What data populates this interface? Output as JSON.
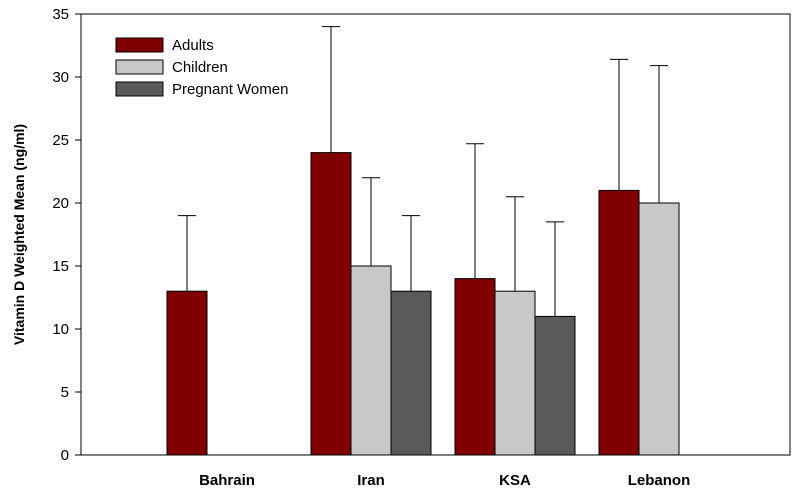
{
  "chart_data": {
    "type": "bar",
    "title": "",
    "xlabel": "",
    "ylabel": "Vitamin D Weighted Mean (ng/ml)",
    "ylim": [
      0,
      35
    ],
    "yticks": [
      0,
      5,
      10,
      15,
      20,
      25,
      30,
      35
    ],
    "grid": false,
    "legend_position": "top-left",
    "categories": [
      "Bahrain",
      "Iran",
      "KSA",
      "Lebanon"
    ],
    "series": [
      {
        "name": "Adults",
        "color": "#800000",
        "values": [
          13,
          24,
          14,
          21
        ],
        "errors": [
          6,
          10,
          10.7,
          10.4
        ]
      },
      {
        "name": "Children",
        "color": "#c8c8c8",
        "values": [
          null,
          15,
          13,
          20
        ],
        "errors": [
          null,
          7,
          7.5,
          10.9
        ]
      },
      {
        "name": "Pregnant Women",
        "color": "#5a5a5a",
        "values": [
          null,
          13,
          11,
          null
        ],
        "errors": [
          null,
          6,
          7.5,
          null
        ]
      }
    ]
  }
}
